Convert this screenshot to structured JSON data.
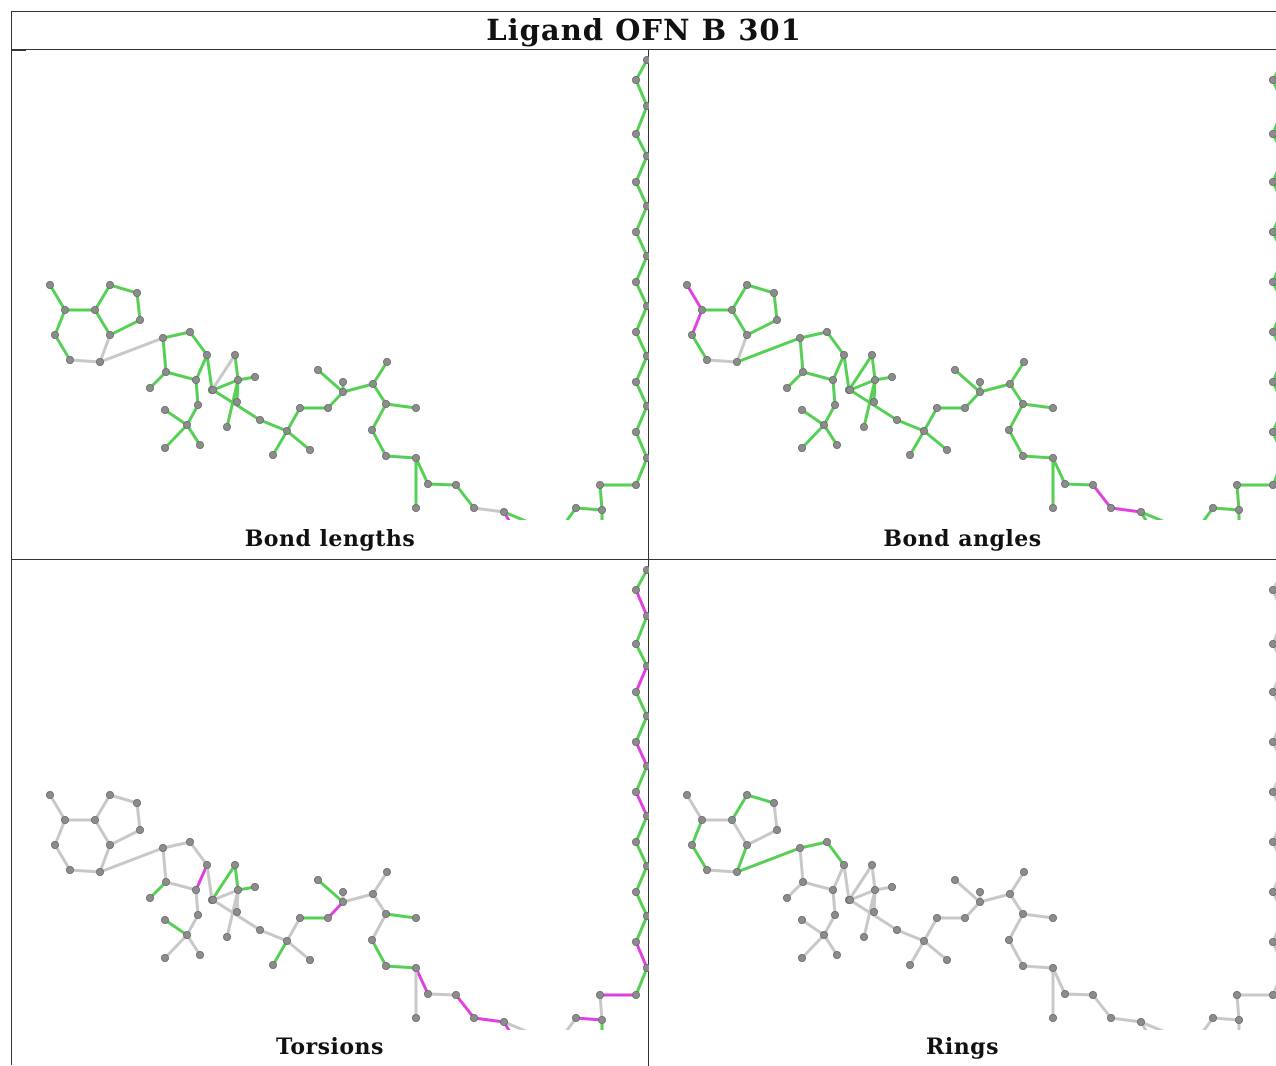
{
  "title": "Ligand OFN B 301",
  "colors": {
    "good": "#55d055",
    "outlier": "#e040e0",
    "neutral": "#c8c8c8",
    "atom": "#8c8c8c"
  },
  "panels": [
    {
      "caption": "Bond lengths",
      "default_color": "green",
      "gray_bonds": [
        [
          3,
          4
        ],
        [
          4,
          5
        ],
        [
          4,
          10
        ],
        [
          20,
          21
        ],
        [
          21,
          22
        ],
        [
          27,
          29
        ],
        [
          47,
          48
        ]
      ],
      "pink_bonds": [
        [
          48,
          49
        ]
      ]
    },
    {
      "caption": "Bond angles",
      "default_color": "green",
      "gray_bonds": [
        [
          3,
          4
        ],
        [
          4,
          5
        ]
      ],
      "pink_bonds": [
        [
          0,
          1
        ],
        [
          1,
          2
        ],
        [
          46,
          47
        ],
        [
          47,
          48
        ]
      ]
    },
    {
      "caption": "Torsions",
      "default_color": "gray",
      "green_bonds": [
        [
          12,
          16
        ],
        [
          14,
          15
        ],
        [
          13,
          17
        ],
        [
          17,
          18
        ],
        [
          19,
          20
        ],
        [
          21,
          22
        ],
        [
          22,
          23
        ],
        [
          23,
          24
        ],
        [
          24,
          25
        ],
        [
          27,
          29
        ],
        [
          29,
          30
        ],
        [
          32,
          33
        ],
        [
          34,
          35
        ],
        [
          35,
          37
        ],
        [
          38,
          39
        ],
        [
          39,
          40
        ],
        [
          41,
          42
        ],
        [
          42,
          43
        ],
        [
          45,
          46
        ],
        [
          49,
          50
        ],
        [
          51,
          52
        ],
        [
          53,
          54
        ],
        [
          54,
          55
        ],
        [
          56,
          57
        ],
        [
          58,
          59
        ],
        [
          59,
          60
        ],
        [
          60,
          61
        ],
        [
          61,
          62
        ],
        [
          62,
          63
        ],
        [
          64,
          65
        ],
        [
          66,
          67
        ],
        [
          67,
          68
        ],
        [
          69,
          70
        ],
        [
          70,
          71
        ],
        [
          72,
          73
        ]
      ],
      "pink_bonds": [
        [
          12,
          13
        ],
        [
          20,
          21
        ],
        [
          26,
          27
        ],
        [
          31,
          32
        ],
        [
          33,
          34
        ],
        [
          36,
          38
        ],
        [
          40,
          41
        ],
        [
          43,
          44
        ],
        [
          44,
          45
        ],
        [
          46,
          47
        ],
        [
          47,
          48
        ],
        [
          48,
          49
        ],
        [
          50,
          51
        ],
        [
          52,
          53
        ],
        [
          55,
          56
        ],
        [
          57,
          58
        ],
        [
          63,
          64
        ],
        [
          65,
          66
        ],
        [
          68,
          69
        ],
        [
          71,
          72
        ]
      ]
    },
    {
      "caption": "Rings",
      "default_color": "gray",
      "green_bonds": [
        [
          1,
          2
        ],
        [
          2,
          3
        ],
        [
          3,
          6
        ],
        [
          6,
          7
        ],
        [
          7,
          8
        ],
        [
          8,
          1
        ],
        [
          6,
          9
        ],
        [
          4,
          5
        ],
        [
          4,
          10
        ],
        [
          10,
          11
        ],
        [
          11,
          12
        ],
        [
          12,
          5
        ]
      ],
      "pink_bonds": []
    }
  ]
}
